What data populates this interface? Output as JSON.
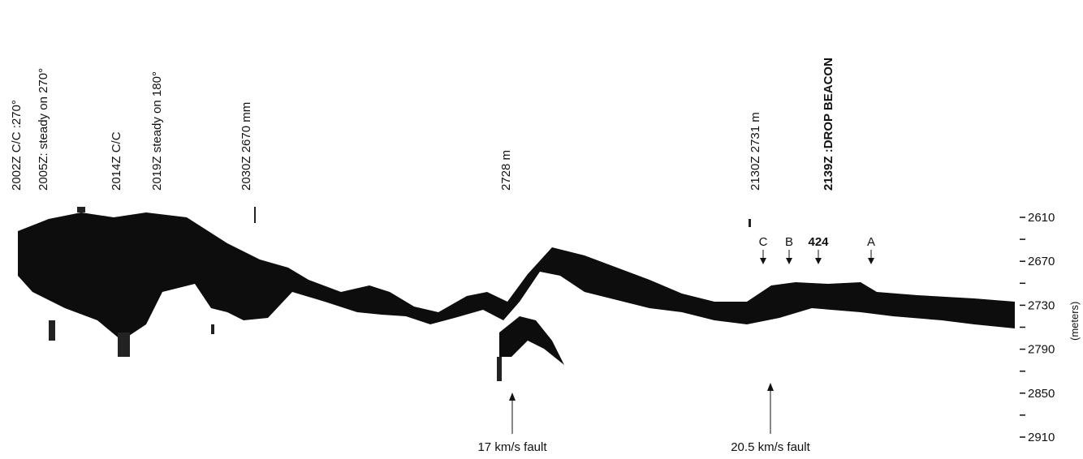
{
  "annotations": [
    "2002Z C/C :270°",
    "2005Z: steady on 270°",
    "2014Z C/C",
    "2019Z steady on 180°",
    "2030Z 2670 mm",
    "2728 m",
    "2130Z 2731 m",
    "2139Z :DROP BEACON"
  ],
  "markers": [
    "C",
    "B",
    "424",
    "A"
  ],
  "faults": [
    "17 km/s fault",
    "20.5 km/s fault"
  ],
  "axis": {
    "ticks": [
      "2610",
      "2670",
      "2730",
      "2790",
      "2850",
      "2910"
    ],
    "label": "(meters)"
  }
}
